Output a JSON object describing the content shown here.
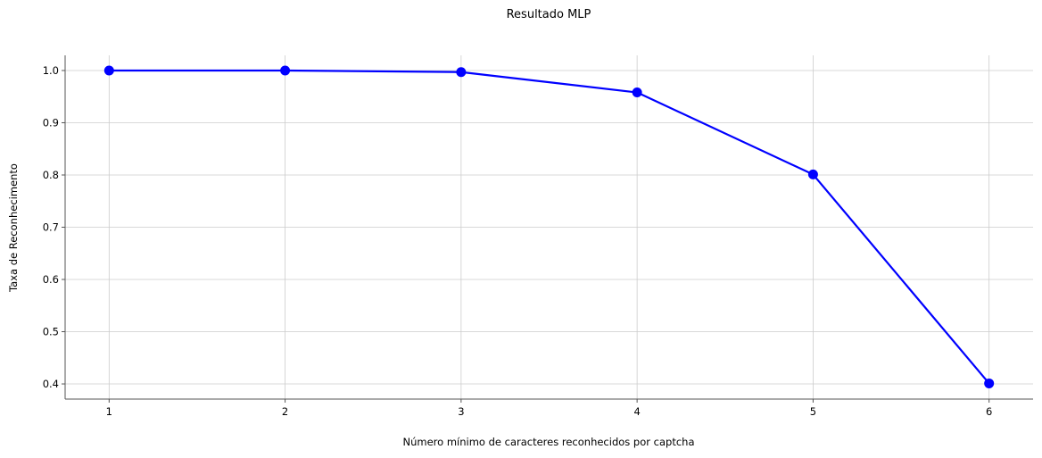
{
  "chart_data": {
    "type": "line",
    "title": "Resultado MLP",
    "xlabel": "Número mínimo de caracteres reconhecidos por captcha",
    "ylabel": "Taxa de Reconhecimento",
    "x": [
      1,
      2,
      3,
      4,
      5,
      6
    ],
    "x_tick_labels": [
      "1",
      "2",
      "3",
      "4",
      "5",
      "6"
    ],
    "xlim": [
      0.75,
      6.25
    ],
    "ylim": [
      0.371,
      1.029
    ],
    "y_ticks": [
      0.4,
      0.5,
      0.6,
      0.7,
      0.8,
      0.9,
      1.0
    ],
    "y_tick_labels": [
      "0.4",
      "0.5",
      "0.6",
      "0.7",
      "0.8",
      "0.9",
      "1.0"
    ],
    "grid": true,
    "series": [
      {
        "values": [
          1.0,
          1.0,
          0.997,
          0.958,
          0.801,
          0.401
        ],
        "color": "#0000ff",
        "marker": "circle"
      }
    ]
  }
}
